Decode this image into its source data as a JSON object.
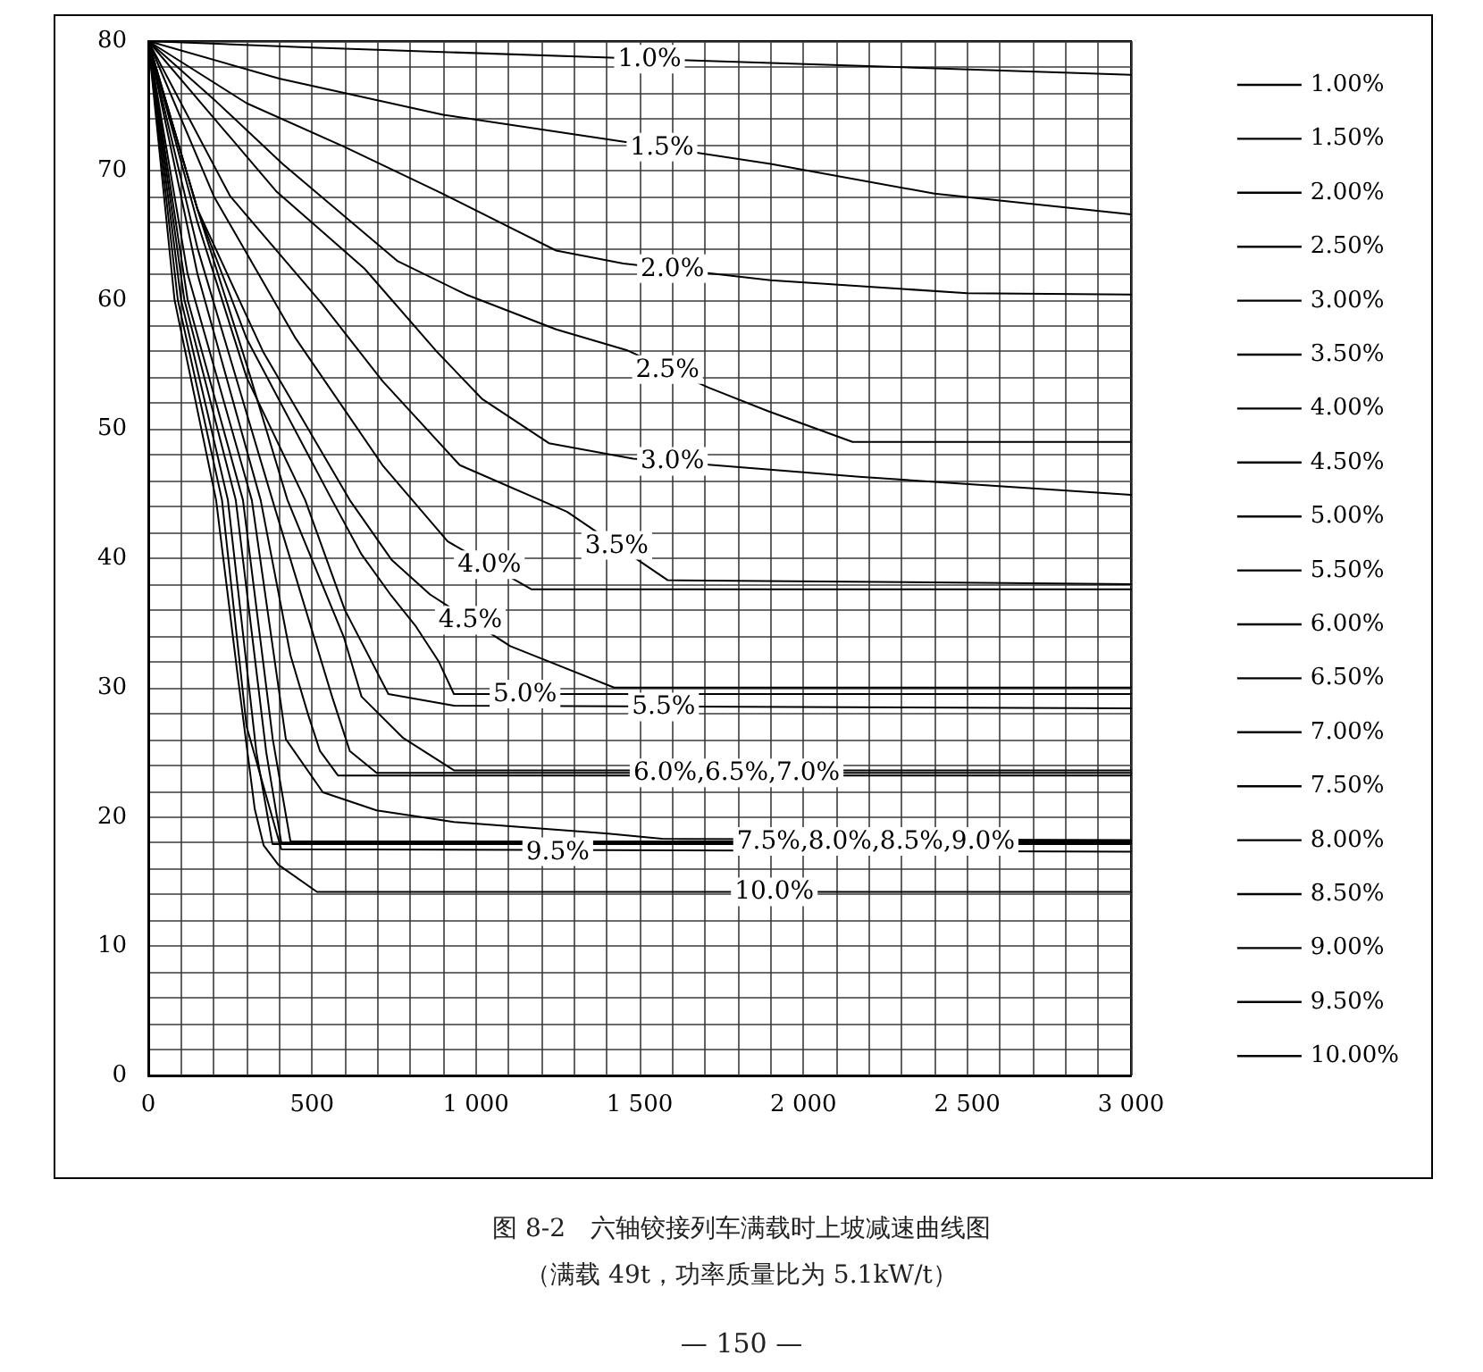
{
  "chart_data": {
    "type": "line",
    "title": "图 8-2　六轴铰接列车满载时上坡减速曲线图",
    "subtitle": "（满载 49t，功率质量比为 5.1kW/t）",
    "annotations": [
      {
        "text": "1.0%",
        "x": 1530,
        "y": 78.6
      },
      {
        "text": "1.5%",
        "x": 1568,
        "y": 71.8
      },
      {
        "text": "2.0%",
        "x": 1600,
        "y": 62.4
      },
      {
        "text": "2.5%",
        "x": 1585,
        "y": 54.6
      },
      {
        "text": "3.0%",
        "x": 1600,
        "y": 47.5
      },
      {
        "text": "3.5%",
        "x": 1430,
        "y": 41
      },
      {
        "text": "4.0%",
        "x": 1041,
        "y": 39.5
      },
      {
        "text": "4.5%",
        "x": 983,
        "y": 35.2
      },
      {
        "text": "5.0%",
        "x": 1150,
        "y": 29.5
      },
      {
        "text": "5.5%",
        "x": 1573,
        "y": 28.5
      },
      {
        "text": "6.0%,6.5%,7.0%",
        "x": 1796,
        "y": 23.4
      },
      {
        "text": "7.5%,8.0%,8.5%,9.0%",
        "x": 2221,
        "y": 18.1
      },
      {
        "text": "9.5%",
        "x": 1250,
        "y": 17.3
      },
      {
        "text": "10.0%",
        "x": 1911,
        "y": 14.2
      },
      "— 150 —"
    ],
    "xlim": [
      0,
      3000
    ],
    "ylim": [
      0,
      80
    ],
    "xticks": [
      0,
      {
        "value": 100,
        "label": null
      },
      {
        "value": 200,
        "label": null
      },
      {
        "value": 300,
        "label": null
      },
      {
        "value": 400,
        "label": null
      },
      500,
      {
        "value": 600,
        "label": null
      },
      {
        "value": 700,
        "label": null
      },
      {
        "value": 800,
        "label": null
      },
      {
        "value": 900,
        "label": null
      },
      {
        "value": 1000,
        "label": "1 000"
      },
      {
        "value": 1100,
        "label": null
      },
      {
        "value": 1200,
        "label": null
      },
      {
        "value": 1300,
        "label": null
      },
      {
        "value": 1400,
        "label": null
      },
      {
        "value": 1500,
        "label": "1 500"
      },
      {
        "value": 1600,
        "label": null
      },
      {
        "value": 1700,
        "label": null
      },
      {
        "value": 1800,
        "label": null
      },
      {
        "value": 1900,
        "label": null
      },
      {
        "value": 2000,
        "label": "2 000"
      },
      {
        "value": 2100,
        "label": null
      },
      {
        "value": 2200,
        "label": null
      },
      {
        "value": 2300,
        "label": null
      },
      {
        "value": 2400,
        "label": null
      },
      {
        "value": 2500,
        "label": "2 500"
      },
      {
        "value": 2600,
        "label": null
      },
      {
        "value": 2700,
        "label": null
      },
      {
        "value": 2800,
        "label": null
      },
      {
        "value": 2900,
        "label": null
      },
      {
        "value": 3000,
        "label": "3 000"
      }
    ],
    "yticks": [
      0,
      {
        "value": 2,
        "label": null
      },
      {
        "value": 4,
        "label": null
      },
      {
        "value": 6,
        "label": null
      },
      {
        "value": 8,
        "label": null
      },
      10,
      {
        "value": 12,
        "label": null
      },
      {
        "value": 14,
        "label": null
      },
      {
        "value": 16,
        "label": null
      },
      {
        "value": 18,
        "label": null
      },
      20,
      {
        "value": 22,
        "label": null
      },
      {
        "value": 24,
        "label": null
      },
      {
        "value": 26,
        "label": null
      },
      {
        "value": 28,
        "label": null
      },
      30,
      {
        "value": 32,
        "label": null
      },
      {
        "value": 34,
        "label": null
      },
      {
        "value": 36,
        "label": null
      },
      {
        "value": 38,
        "label": null
      },
      40,
      {
        "value": 42,
        "label": null
      },
      {
        "value": 44,
        "label": null
      },
      {
        "value": 46,
        "label": null
      },
      {
        "value": 48,
        "label": null
      },
      50,
      {
        "value": 52,
        "label": null
      },
      {
        "value": 54,
        "label": null
      },
      {
        "value": 56,
        "label": null
      },
      {
        "value": 58,
        "label": null
      },
      60,
      {
        "value": 62,
        "label": null
      },
      {
        "value": 64,
        "label": null
      },
      {
        "value": 66,
        "label": null
      },
      {
        "value": 68,
        "label": null
      },
      70,
      {
        "value": 72,
        "label": null
      },
      {
        "value": 74,
        "label": null
      },
      {
        "value": 76,
        "label": null
      },
      {
        "value": 78,
        "label": null
      },
      80
    ],
    "grid": true,
    "legend": "right",
    "marker": "none",
    "line_style": "solid",
    "series": [
      {
        "name": "1.00%",
        "color": "#000000",
        "x": [
          0,
          500,
          1430,
          3000
        ],
        "values": [
          80,
          79.5,
          78.7,
          77.4
        ]
      },
      {
        "name": "1.50%",
        "color": "#000000",
        "x": [
          0,
          400,
          900,
          1430,
          1900,
          2400,
          3000
        ],
        "values": [
          80,
          77.1,
          74.3,
          72.3,
          70.5,
          68.2,
          66.6
        ]
      },
      {
        "name": "2.00%",
        "color": "#000000",
        "x": [
          0,
          300,
          600,
          890,
          1245,
          1450,
          1900,
          2500,
          3000
        ],
        "values": [
          80,
          75.2,
          71.8,
          68.3,
          63.8,
          62.8,
          61.5,
          60.5,
          60.4
        ]
      },
      {
        "name": "2.50%",
        "color": "#000000",
        "x": [
          0,
          200,
          410,
          760,
          970,
          1245,
          1460,
          1710,
          1890,
          2150,
          3000
        ],
        "values": [
          80,
          75.5,
          70.5,
          63,
          60.4,
          57.7,
          56.1,
          53.2,
          51.4,
          49,
          49
        ]
      },
      {
        "name": "3.00%",
        "color": "#000000",
        "x": [
          0,
          390,
          660,
          880,
          1020,
          1223,
          1480,
          2170,
          3000
        ],
        "values": [
          80,
          68.4,
          62.4,
          56,
          52.3,
          48.9,
          47.7,
          46.3,
          44.9
        ]
      },
      {
        "name": "3.50%",
        "color": "#000000",
        "x": [
          0,
          250,
          530,
          715,
          951,
          1278,
          1586,
          3000
        ],
        "values": [
          80,
          68,
          59.7,
          53.7,
          47.2,
          43.6,
          38.3,
          38
        ]
      },
      {
        "name": "4.00%",
        "color": "#000000",
        "x": [
          0,
          200,
          450,
          715,
          914,
          1169,
          3000
        ],
        "values": [
          80,
          68,
          57,
          47.2,
          41.3,
          37.6,
          37.6
        ]
      },
      {
        "name": "4.50%",
        "color": "#000000",
        "x": [
          0,
          150,
          350,
          615,
          742,
          860,
          1105,
          1422,
          3000
        ],
        "values": [
          80,
          67,
          56,
          44.5,
          39.9,
          37.2,
          33.2,
          30,
          30
        ]
      },
      {
        "name": "5.00%",
        "color": "#000000",
        "x": [
          0,
          150,
          300,
          561,
          651,
          742,
          815,
          887,
          933,
          3000
        ],
        "values": [
          80,
          67,
          57,
          44.5,
          40.3,
          37.1,
          34.8,
          32,
          29.5,
          29.5
        ]
      },
      {
        "name": "5.50%",
        "color": "#000000",
        "x": [
          0,
          150,
          300,
          479,
          600,
          733,
          933,
          3000
        ],
        "values": [
          80,
          66,
          54,
          44.5,
          36,
          29.5,
          28.6,
          28.4
        ]
      },
      {
        "name": "6.00%",
        "color": "#000000",
        "x": [
          0,
          150,
          300,
          425,
          597,
          651,
          778,
          933,
          3000
        ],
        "values": [
          80,
          67,
          55,
          44.5,
          33.9,
          29.3,
          26.1,
          23.6,
          23.6
        ]
      },
      {
        "name": "6.50%",
        "color": "#000000",
        "x": [
          0,
          150,
          379,
          561,
          615,
          697,
          3000
        ],
        "values": [
          80,
          64,
          44.5,
          29.3,
          25.1,
          23.4,
          23.4
        ]
      },
      {
        "name": "7.00%",
        "color": "#000000",
        "x": [
          0,
          150,
          343,
          434,
          488,
          524,
          579,
          3000
        ],
        "values": [
          80,
          62,
          44.5,
          32.5,
          27.9,
          25.1,
          23.2,
          23.2
        ]
      },
      {
        "name": "7.50%",
        "color": "#000000",
        "x": [
          0,
          120,
          316,
          420,
          533,
          697,
          933,
          1404,
          1568,
          3000
        ],
        "values": [
          80,
          62,
          44.5,
          26,
          21.9,
          20.5,
          19.6,
          18.7,
          18.3,
          18.2
        ]
      },
      {
        "name": "8.00%",
        "color": "#000000",
        "x": [
          0,
          120,
          289,
          380,
          434,
          3000
        ],
        "values": [
          80,
          60,
          44.5,
          26,
          18.1,
          18.1
        ]
      },
      {
        "name": "8.50%",
        "color": "#000000",
        "x": [
          0,
          110,
          267,
          360,
          406,
          3000
        ],
        "values": [
          80,
          60,
          44.5,
          25,
          18,
          18
        ]
      },
      {
        "name": "9.00%",
        "color": "#000000",
        "x": [
          0,
          100,
          243,
          330,
          379,
          3000
        ],
        "values": [
          80,
          60,
          44.5,
          25,
          17.9,
          17.9
        ]
      },
      {
        "name": "9.50%",
        "color": "#000000",
        "x": [
          0,
          90,
          225,
          300,
          406,
          3000
        ],
        "values": [
          80,
          60,
          44.5,
          27,
          17.5,
          17.3
        ]
      },
      {
        "name": "10.00%",
        "color": "#000000",
        "x": [
          0,
          80,
          207,
          274,
          325,
          352,
          397,
          515,
          3000
        ],
        "values": [
          80,
          60,
          44.5,
          30.7,
          20.6,
          17.8,
          16.3,
          14.2,
          14.2
        ]
      }
    ]
  }
}
